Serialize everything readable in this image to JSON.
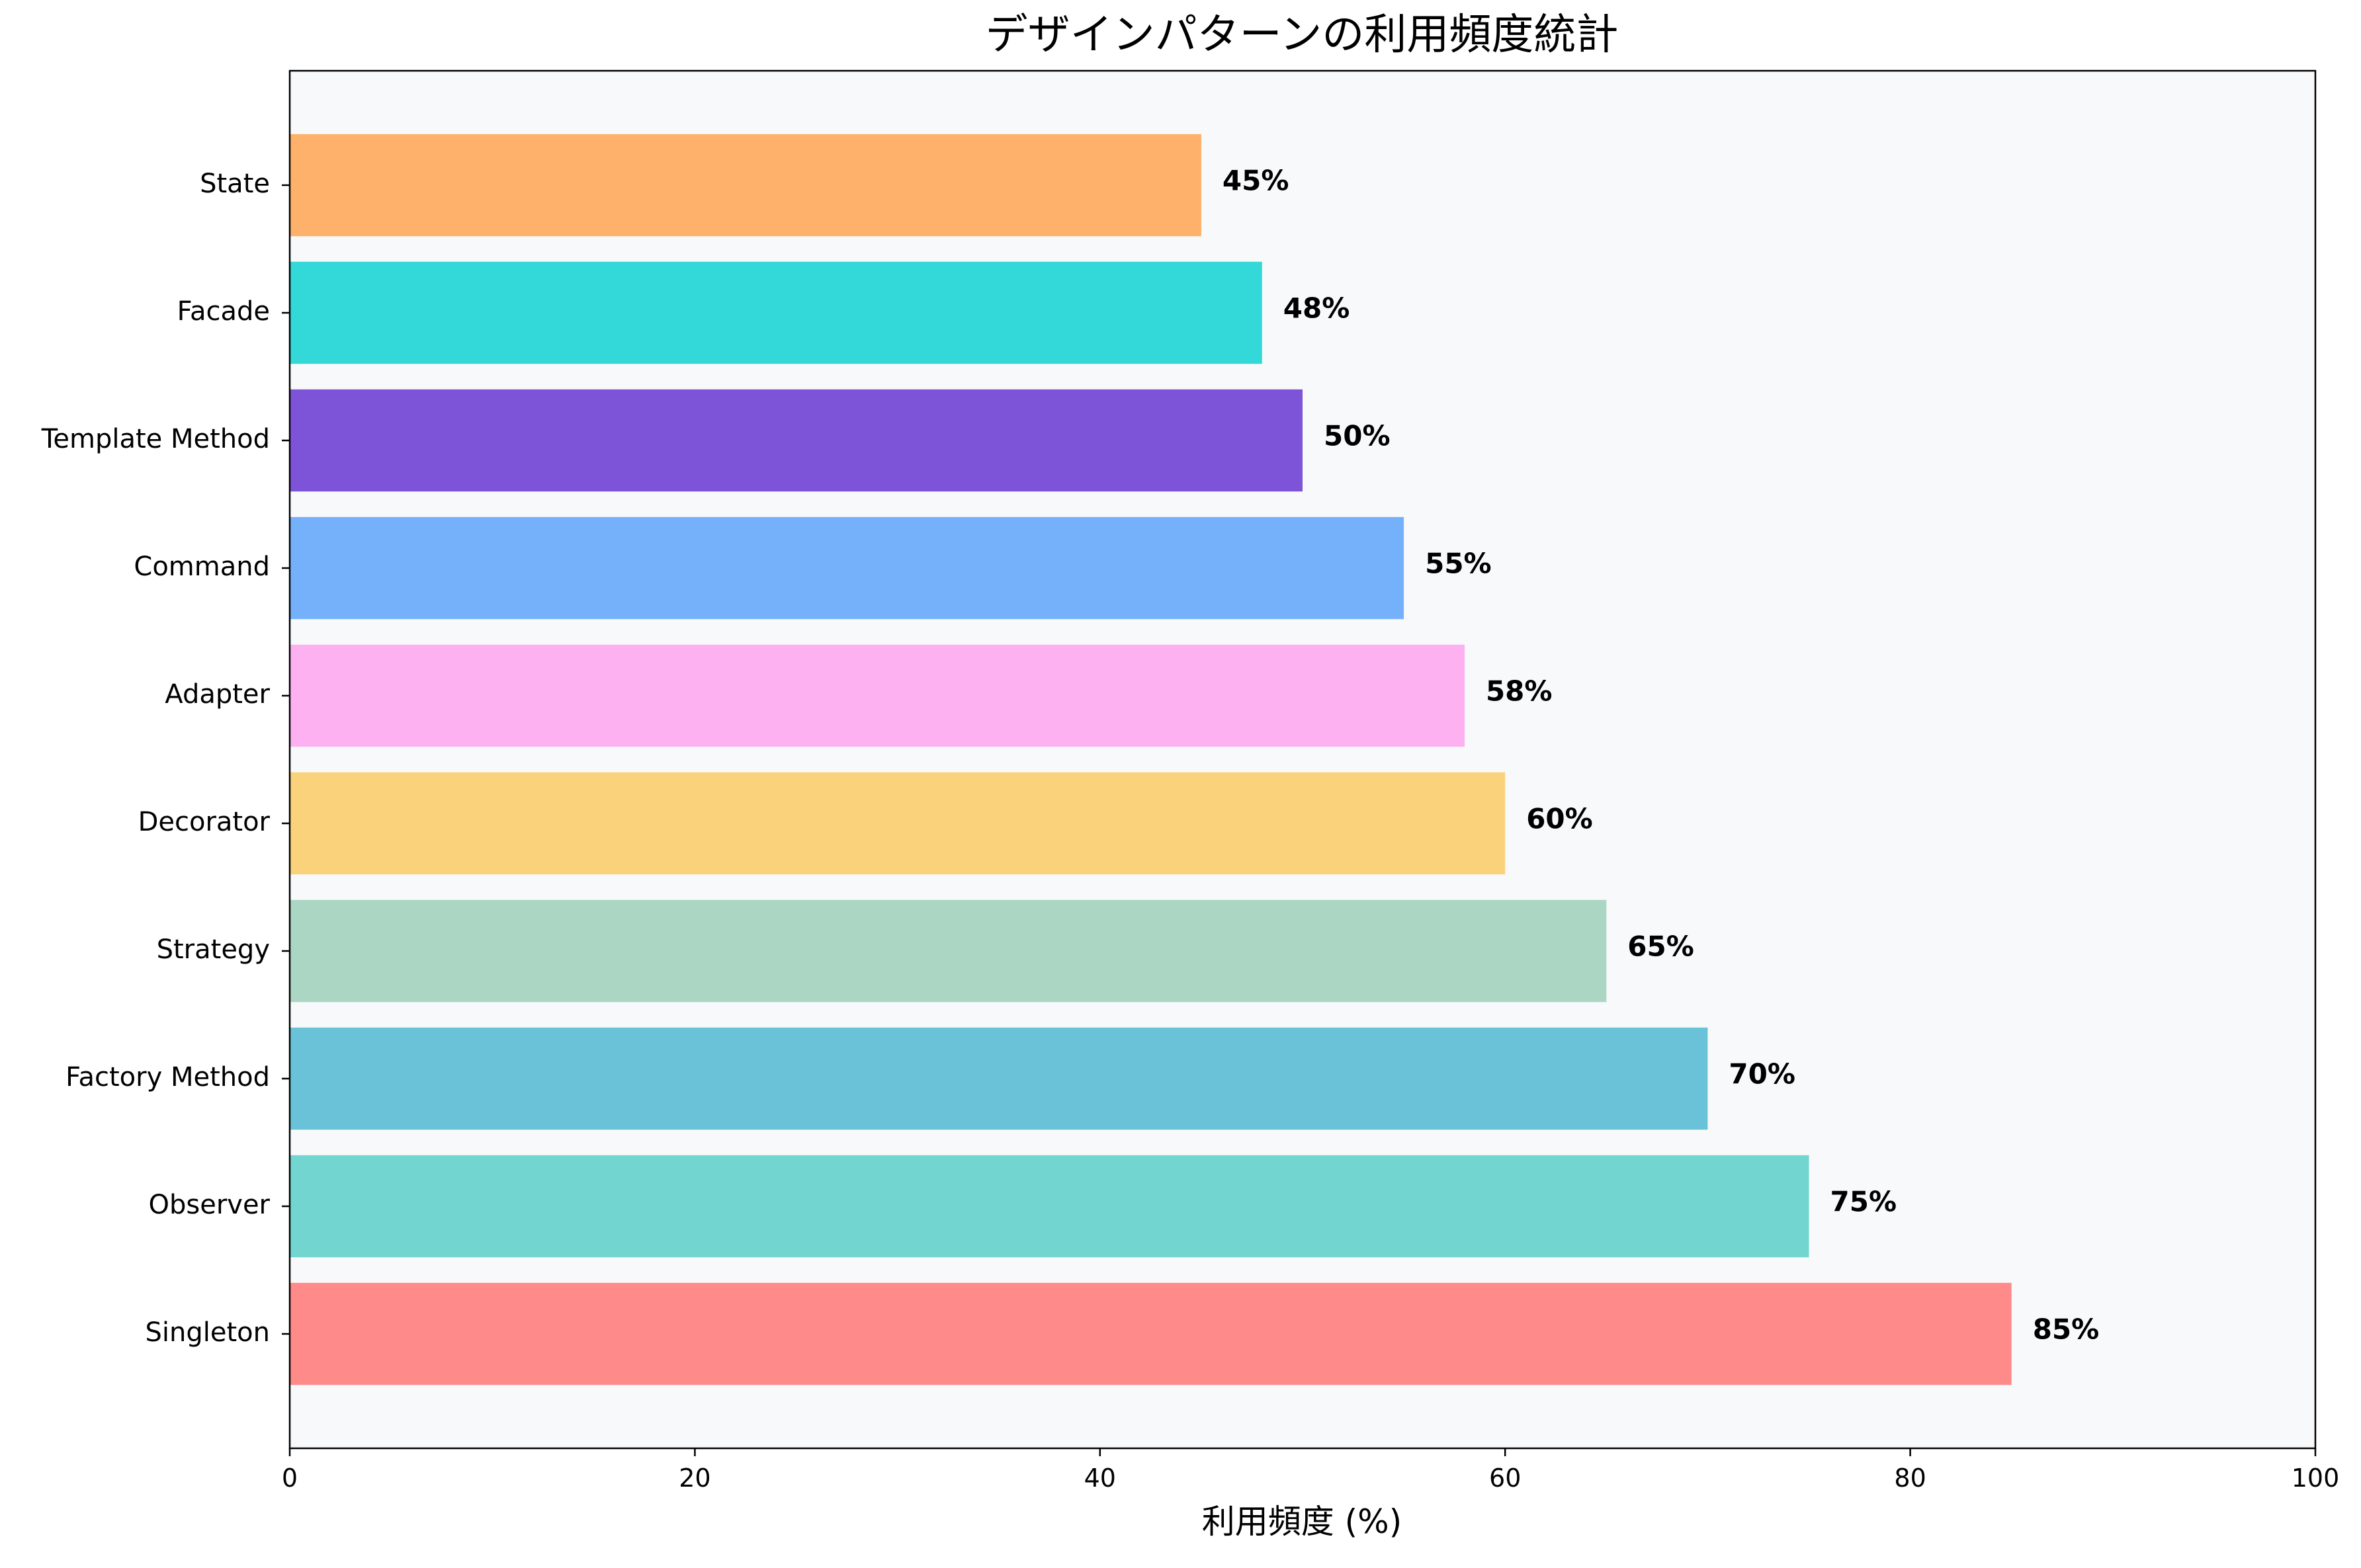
{
  "chart_data": {
    "type": "bar",
    "orientation": "horizontal",
    "title": "デザインパターンの利用頻度統計",
    "xlabel": "利用頻度 (%)",
    "ylabel": "",
    "xlim": [
      0,
      100
    ],
    "xticks": [
      0,
      20,
      40,
      60,
      80,
      100
    ],
    "grid": false,
    "plot_background": "#f8f9fa",
    "categories": [
      "Singleton",
      "Observer",
      "Factory Method",
      "Strategy",
      "Decorator",
      "Adapter",
      "Command",
      "Template Method",
      "Facade",
      "State"
    ],
    "values": [
      85,
      75,
      70,
      65,
      60,
      58,
      55,
      50,
      48,
      45
    ],
    "value_labels": [
      "85%",
      "75%",
      "70%",
      "65%",
      "60%",
      "58%",
      "55%",
      "50%",
      "48%",
      "45%"
    ],
    "colors": [
      "#ff8a8a",
      "#73d5cf",
      "#69c2d8",
      "#aad6c3",
      "#fbd27c",
      "#fdb1f1",
      "#75b1fb",
      "#7d54d8",
      "#33d8d8",
      "#fdb16b"
    ]
  }
}
